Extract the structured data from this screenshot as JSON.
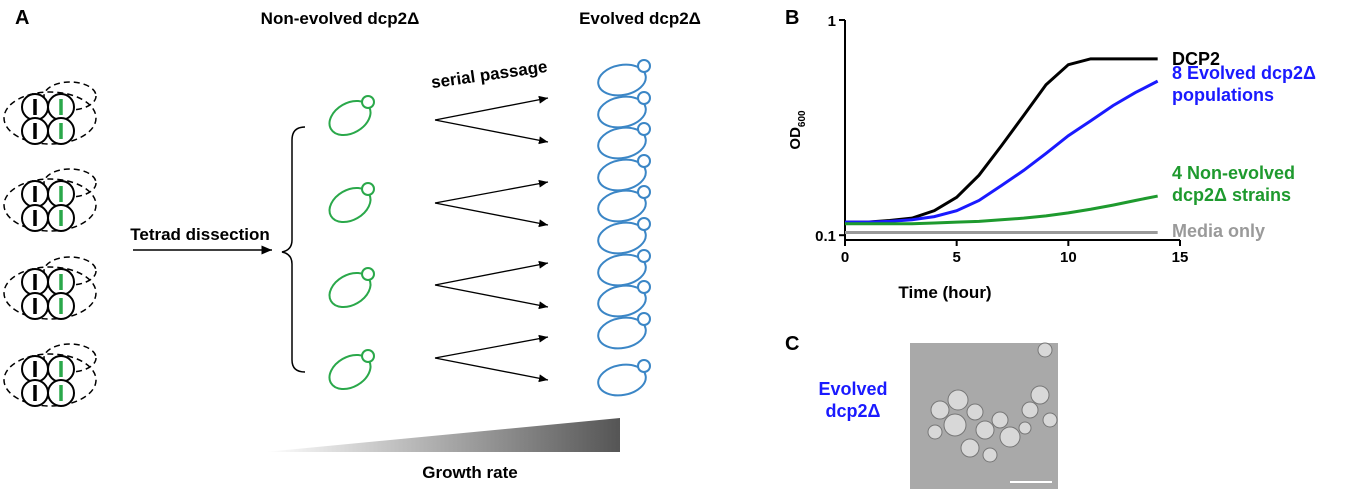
{
  "panel_a": {
    "label": "A",
    "left_title": "Non-evolved dcp2Δ",
    "right_title": "Evolved dcp2Δ",
    "arrow_label": "serial passage",
    "dissection_label": "Tetrad dissection",
    "gradient_label": "Growth rate"
  },
  "chart_data": {
    "type": "line",
    "panel_label": "B",
    "x_label": "Time (hour)",
    "y_label": "OD",
    "y_label_sub": "600",
    "x": [
      0,
      1,
      2,
      3,
      4,
      5,
      6,
      7,
      8,
      9,
      10,
      11,
      12,
      13,
      14
    ],
    "series": [
      {
        "name": "DCP2",
        "color": "#000000",
        "values": [
          0.115,
          0.115,
          0.117,
          0.12,
          0.13,
          0.15,
          0.19,
          0.26,
          0.36,
          0.5,
          0.62,
          0.66,
          0.66,
          0.66,
          0.66
        ]
      },
      {
        "name": "8 Evolved dcp2Δ populations",
        "color": "#1a1aff",
        "values": [
          0.115,
          0.115,
          0.116,
          0.118,
          0.122,
          0.13,
          0.145,
          0.17,
          0.2,
          0.24,
          0.29,
          0.34,
          0.4,
          0.46,
          0.52
        ]
      },
      {
        "name": "4 Non-evolved dcp2Δ strains",
        "color": "#1e9a2e",
        "values": [
          0.113,
          0.113,
          0.113,
          0.113,
          0.114,
          0.115,
          0.116,
          0.118,
          0.12,
          0.123,
          0.127,
          0.132,
          0.138,
          0.145,
          0.152
        ]
      },
      {
        "name": "Media only",
        "color": "#9a9a9a",
        "values": [
          0.103,
          0.103,
          0.103,
          0.103,
          0.103,
          0.103,
          0.103,
          0.103,
          0.103,
          0.103,
          0.103,
          0.103,
          0.103,
          0.103,
          0.103
        ]
      }
    ],
    "xlim": [
      0,
      15
    ],
    "xticks": [
      0,
      5,
      10,
      15
    ],
    "ylim": [
      0.095,
      1
    ],
    "yticks": [
      0.1,
      1
    ],
    "log_y": true
  },
  "panel_c": {
    "label": "C",
    "caption": "Evolved dcp2Δ"
  }
}
